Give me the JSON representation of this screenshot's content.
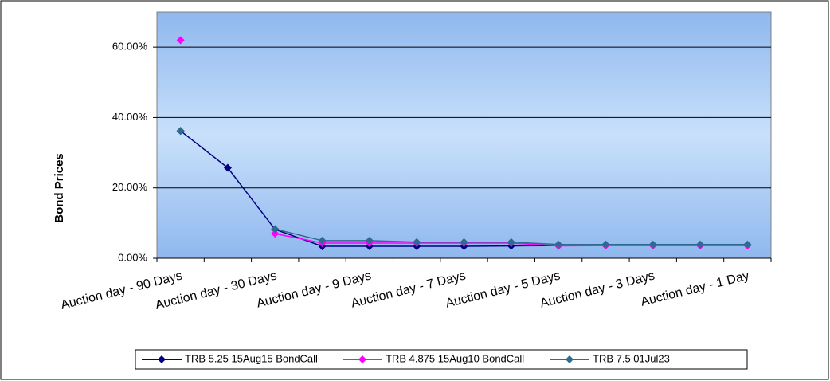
{
  "chart_data": {
    "type": "line",
    "y_label": "Bond Prices",
    "categories": [
      "Auction day - 90 Days",
      null,
      "Auction day - 30 Days",
      null,
      "Auction day - 9 Days",
      null,
      "Auction day - 7 Days",
      null,
      "Auction day - 5 Days",
      null,
      "Auction day - 3 Days",
      null,
      "Auction day - 1 Day"
    ],
    "series": [
      {
        "name": "TRB 5.25 15Aug15 BondCall",
        "color": "#000080",
        "values": [
          36.2,
          25.7,
          8.2,
          3.4,
          3.4,
          3.4,
          3.4,
          3.5,
          3.6,
          3.8,
          3.8,
          3.8,
          3.8
        ]
      },
      {
        "name": "TRB 4.875 15Aug10 BondCall",
        "color": "#ff00ff",
        "values": [
          62.0,
          null,
          7.0,
          4.3,
          4.3,
          4.3,
          4.3,
          4.3,
          3.5,
          3.6,
          3.6,
          3.6,
          3.6
        ]
      },
      {
        "name": "TRB 7.5 01Jul23",
        "color": "#2e6b8f",
        "values": [
          36.2,
          null,
          8.3,
          5.0,
          5.0,
          4.6,
          4.6,
          4.6,
          3.9,
          3.9,
          3.9,
          3.9,
          3.9
        ]
      }
    ],
    "ylim": [
      0,
      70
    ],
    "yticks": [
      {
        "value": 0,
        "label": "0.00%"
      },
      {
        "value": 20,
        "label": "20.00%"
      },
      {
        "value": 40,
        "label": "40.00%"
      },
      {
        "value": 60,
        "label": "60.00%"
      }
    ],
    "grid": true,
    "legend": "bottom"
  }
}
